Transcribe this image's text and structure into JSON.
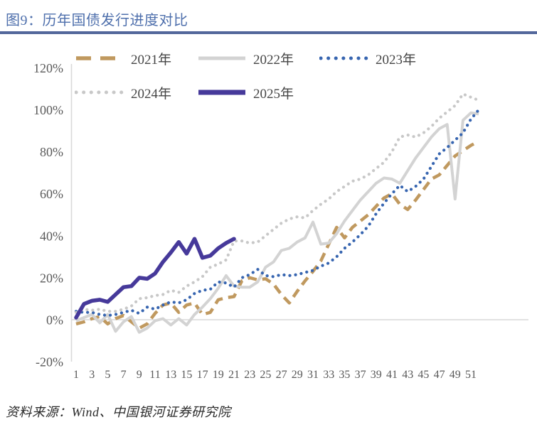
{
  "title": "图9：历年国债发行进度对比",
  "source": "资料来源：Wind、中国银河证券研究院",
  "colors": {
    "title_blue": "#4E6FAC",
    "rule_blue": "#53679B",
    "axis_gray": "#D9D9D9",
    "tick_text": "#595959",
    "series_2021": "#C0995F",
    "series_2022": "#D3D3D3",
    "series_2023": "#3765B0",
    "series_2024": "#C8C8C8",
    "series_2025": "#46399A"
  },
  "chart_data": {
    "type": "line",
    "title": "历年国债发行进度对比",
    "xlabel": "",
    "ylabel": "",
    "x_axis": {
      "range": [
        1,
        52
      ],
      "ticks": [
        1,
        3,
        5,
        7,
        9,
        11,
        13,
        15,
        17,
        19,
        21,
        23,
        25,
        27,
        29,
        31,
        33,
        35,
        37,
        39,
        41,
        43,
        45,
        47,
        49,
        51
      ]
    },
    "y_axis": {
      "range": [
        -20,
        120
      ],
      "tick_values": [
        120,
        100,
        80,
        60,
        40,
        20,
        0,
        -20
      ],
      "tick_labels": [
        "120%",
        "100%",
        "80%",
        "60%",
        "40%",
        "20%",
        "0%",
        "-20%"
      ]
    },
    "grid": "zero-line-only",
    "legend_position": "top",
    "unit": "percent",
    "series": [
      {
        "name": "2021年",
        "style": "dashed",
        "color": "#C0995F",
        "values": [
          -2,
          -1,
          0.5,
          1.5,
          -2,
          0.5,
          2,
          -1,
          -4,
          -2,
          3,
          7,
          8,
          3.5,
          7,
          8,
          2.5,
          3.5,
          9.5,
          10.5,
          11,
          18.5,
          20,
          19,
          19.5,
          17,
          12,
          8,
          13.5,
          18.5,
          23,
          28,
          36,
          44,
          39,
          44,
          47,
          50,
          54,
          58,
          60,
          55,
          52.5,
          57,
          62,
          67,
          69,
          73.5,
          78,
          80.5,
          83,
          85
        ]
      },
      {
        "name": "2022年",
        "style": "solid",
        "color": "#D3D3D3",
        "values": [
          -0.5,
          1,
          2.5,
          -1.5,
          2.5,
          -5.5,
          -1,
          1.5,
          -6,
          -4,
          -0.5,
          0.5,
          -2.5,
          0.5,
          -2.5,
          2.5,
          6,
          10,
          15,
          21,
          16,
          15.5,
          15.5,
          18,
          25,
          27.5,
          33,
          34,
          37,
          39,
          46.5,
          36,
          36.5,
          41,
          47,
          52,
          57,
          61,
          65,
          67.5,
          67,
          65,
          71,
          77,
          82,
          87,
          91,
          93,
          57.5,
          95,
          98.5,
          98
        ]
      },
      {
        "name": "2023年",
        "style": "dotted",
        "color": "#3765B0",
        "values": [
          4,
          3.5,
          3.5,
          2.5,
          2,
          2.5,
          3.5,
          4.5,
          3,
          6,
          5,
          7,
          8.5,
          8,
          9.5,
          12.5,
          14,
          14.5,
          18,
          17.5,
          15.5,
          20,
          21.5,
          24,
          21,
          20.5,
          21.5,
          21,
          21.5,
          22.5,
          23.5,
          25.5,
          27,
          30,
          34,
          37,
          40.5,
          44.5,
          50.5,
          55.5,
          60,
          64,
          61,
          63.5,
          67,
          73,
          79,
          82,
          85.5,
          89,
          95.5,
          100
        ]
      },
      {
        "name": "2024年",
        "style": "dotted",
        "color": "#C8C8C8",
        "values": [
          3.5,
          5,
          4.5,
          5,
          4,
          4,
          5,
          6.5,
          10,
          10.5,
          11.5,
          12,
          14,
          13,
          16,
          18,
          20.5,
          25,
          26.5,
          28.5,
          37.5,
          37.5,
          36.5,
          37,
          40,
          43,
          46,
          48,
          49,
          48.5,
          52,
          55,
          57.5,
          61,
          63.5,
          66,
          67,
          69,
          72,
          75,
          80,
          87,
          88,
          87,
          89,
          92,
          96,
          99,
          102,
          107.5,
          106,
          104.5
        ]
      },
      {
        "name": "2025年",
        "style": "solid-thick",
        "color": "#46399A",
        "values": [
          1,
          7.5,
          9,
          9.5,
          8.5,
          12,
          15.5,
          16,
          20,
          19.5,
          22,
          27.5,
          32,
          37,
          31.5,
          38.5,
          29.5,
          30.5,
          34,
          36.5,
          38.5
        ]
      }
    ]
  }
}
